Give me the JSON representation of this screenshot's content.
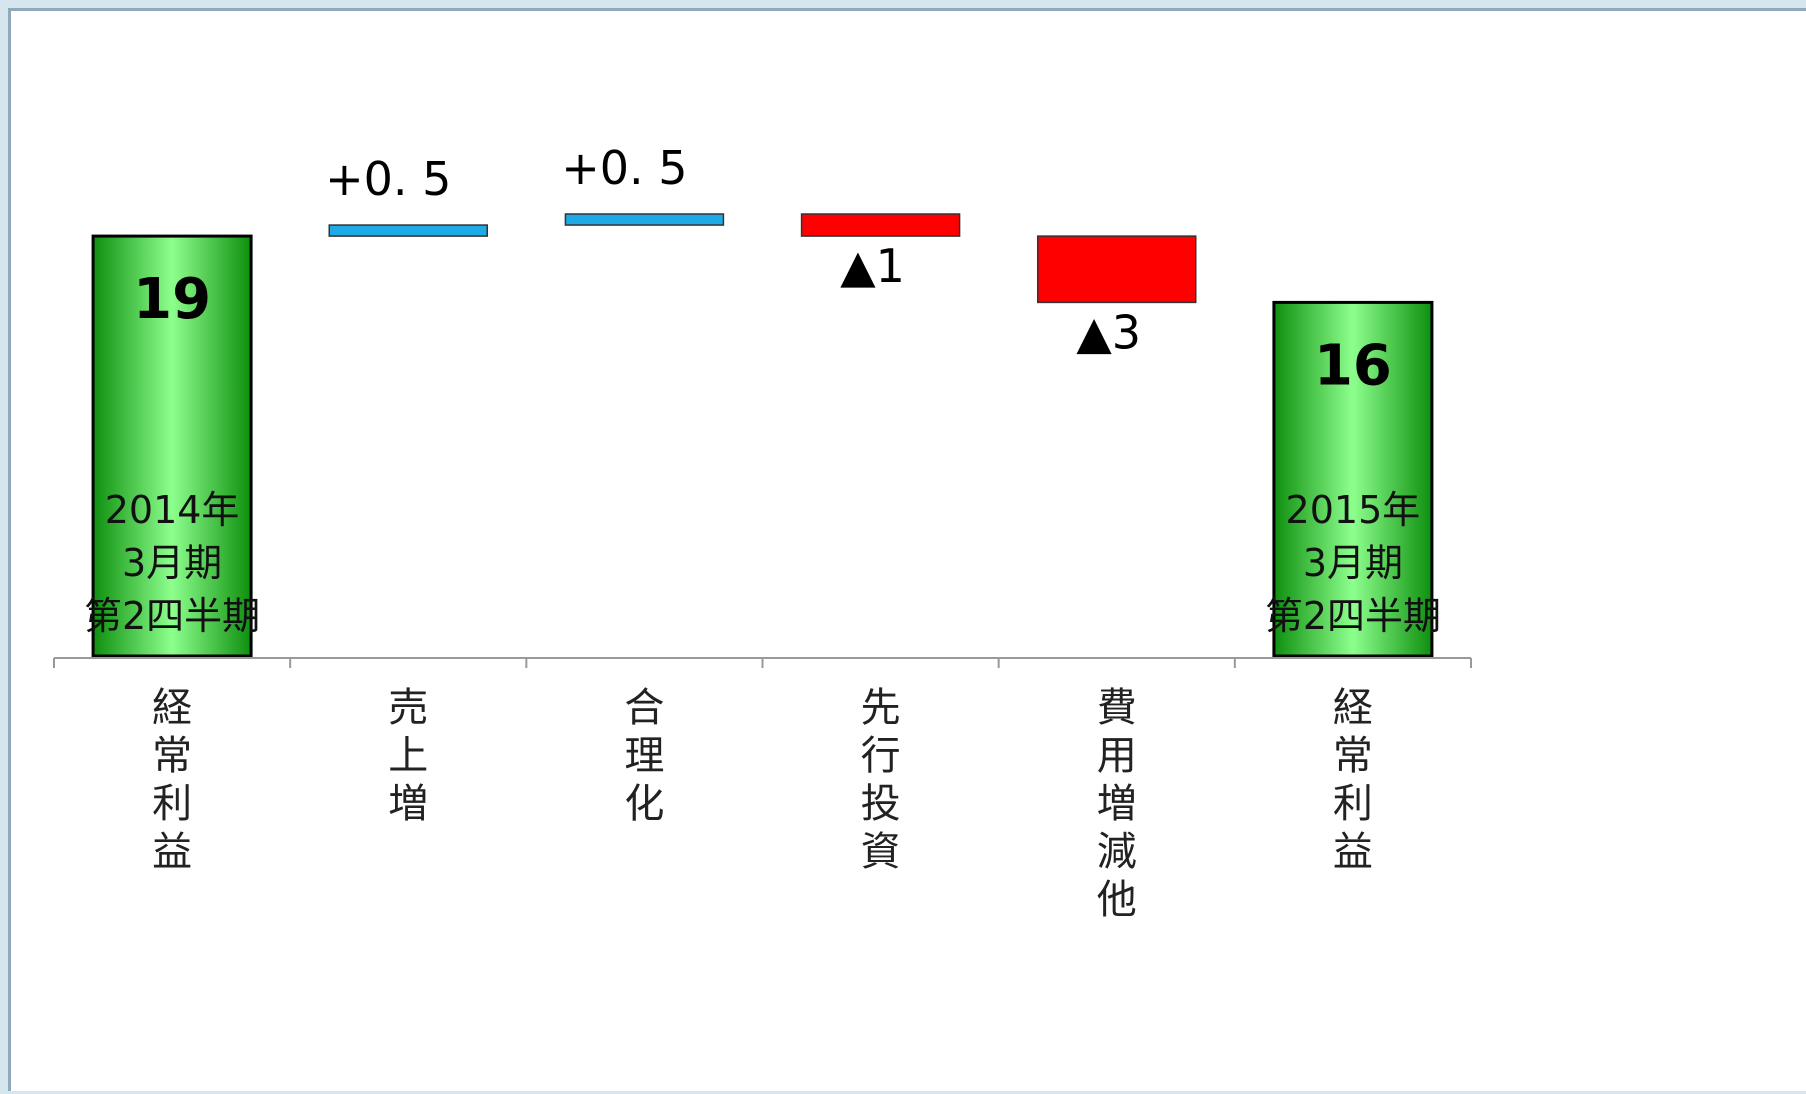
{
  "chart_data": {
    "type": "bar",
    "subtype": "waterfall",
    "categories": [
      "経常利益",
      "売上増",
      "合理化",
      "先行投資",
      "費用増減他",
      "経常利益"
    ],
    "values": [
      19,
      0.5,
      0.5,
      -1,
      -3,
      16
    ],
    "kinds": [
      "total",
      "delta",
      "delta",
      "delta",
      "delta",
      "total"
    ],
    "data_labels": [
      "19",
      "+0. 5",
      "+0. 5",
      "▲1",
      "▲3",
      "16"
    ],
    "period_labels": [
      [
        "2014年",
        "3月期",
        "第2四半期"
      ],
      [],
      [],
      [],
      [],
      [
        "2015年",
        "3月期",
        "第2四半期"
      ]
    ],
    "colors": {
      "total_fill": "#66ee66",
      "total_edge": "#0b8a0b",
      "increase": "#1eaae6",
      "decrease": "#ff0000"
    },
    "ylim": [
      0,
      20
    ],
    "grid": false,
    "legend": "none"
  }
}
